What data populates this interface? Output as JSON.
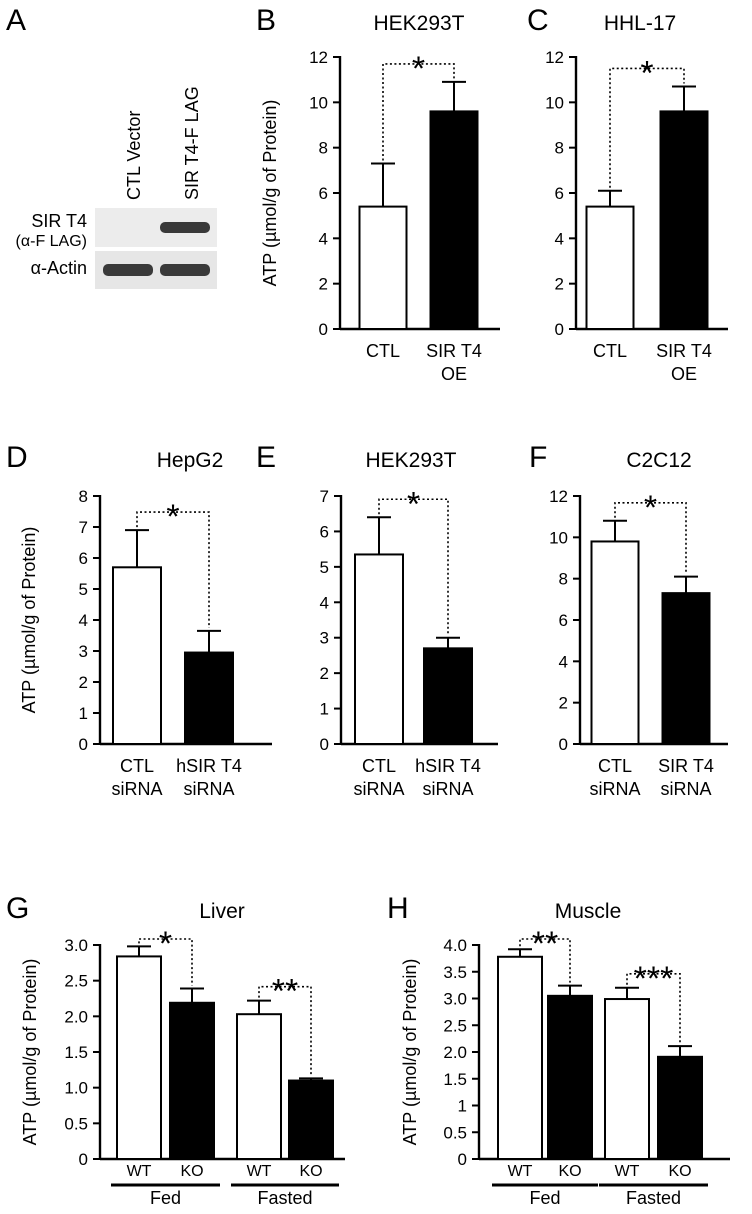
{
  "panels": {
    "A": {
      "letter": "A",
      "blot": {
        "lanes": [
          "CTL Vector",
          "SIR T4-F LAG"
        ],
        "rows": [
          {
            "label_line1": "SIR T4",
            "label_line2": "(α-F LAG)",
            "bands": [
              0.0,
              1.0
            ]
          },
          {
            "label_line1": "α-Actin",
            "label_line2": "",
            "bands": [
              1.0,
              1.0
            ]
          }
        ]
      }
    }
  },
  "chart_data": [
    {
      "id": "B",
      "letter": "B",
      "type": "bar",
      "title": "HEK293T",
      "ylabel": "ATP (µmol/g of Protein)",
      "ylim": [
        0,
        12
      ],
      "yticks": [
        "0",
        "2",
        "4",
        "6",
        "8",
        "10",
        "12"
      ],
      "categories": [
        {
          "line1": "CTL",
          "line2": ""
        },
        {
          "line1": "SIR T4",
          "line2": "OE"
        }
      ],
      "values": [
        5.4,
        9.6
      ],
      "errors": [
        1.9,
        1.3
      ],
      "fills": [
        "#ffffff",
        "#000000"
      ],
      "significance": [
        {
          "from": 0,
          "to": 1,
          "label": "*"
        }
      ]
    },
    {
      "id": "C",
      "letter": "C",
      "type": "bar",
      "title": "HHL-17",
      "ylabel": "",
      "ylim": [
        0,
        12
      ],
      "yticks": [
        "0",
        "2",
        "4",
        "6",
        "8",
        "10",
        "12"
      ],
      "categories": [
        {
          "line1": "CTL",
          "line2": ""
        },
        {
          "line1": "SIR T4",
          "line2": "OE"
        }
      ],
      "values": [
        5.4,
        9.6
      ],
      "errors": [
        0.7,
        1.1
      ],
      "fills": [
        "#ffffff",
        "#000000"
      ],
      "significance": [
        {
          "from": 0,
          "to": 1,
          "label": "*"
        }
      ]
    },
    {
      "id": "D",
      "letter": "D",
      "type": "bar",
      "title": "HepG2",
      "ylabel": "ATP (µmol/g of Protein)",
      "ylim": [
        0,
        8
      ],
      "yticks": [
        "0",
        "1",
        "2",
        "3",
        "4",
        "5",
        "6",
        "7",
        "8"
      ],
      "categories": [
        {
          "line1": "CTL",
          "line2": "siRNA"
        },
        {
          "line1": "hSIR T4",
          "line2": "siRNA"
        }
      ],
      "values": [
        5.7,
        2.95
      ],
      "errors": [
        1.2,
        0.7
      ],
      "fills": [
        "#ffffff",
        "#000000"
      ],
      "significance": [
        {
          "from": 0,
          "to": 1,
          "label": "*"
        }
      ]
    },
    {
      "id": "E",
      "letter": "E",
      "type": "bar",
      "title": "HEK293T",
      "ylabel": "",
      "ylim": [
        0,
        7
      ],
      "yticks": [
        "0",
        "1",
        "2",
        "3",
        "4",
        "5",
        "6",
        "7"
      ],
      "categories": [
        {
          "line1": "CTL",
          "line2": "siRNA"
        },
        {
          "line1": "hSIR T4",
          "line2": "siRNA"
        }
      ],
      "values": [
        5.35,
        2.7
      ],
      "errors": [
        1.05,
        0.3
      ],
      "fills": [
        "#ffffff",
        "#000000"
      ],
      "significance": [
        {
          "from": 0,
          "to": 1,
          "label": "*"
        }
      ]
    },
    {
      "id": "F",
      "letter": "F",
      "type": "bar",
      "title": "C2C12",
      "ylabel": "",
      "ylim": [
        0,
        12
      ],
      "yticks": [
        "0",
        "2",
        "4",
        "6",
        "8",
        "10",
        "12"
      ],
      "categories": [
        {
          "line1": "CTL",
          "line2": "siRNA"
        },
        {
          "line1": "SIR T4",
          "line2": "siRNA"
        }
      ],
      "values": [
        9.8,
        7.3
      ],
      "errors": [
        1.0,
        0.8
      ],
      "fills": [
        "#ffffff",
        "#000000"
      ],
      "significance": [
        {
          "from": 0,
          "to": 1,
          "label": "*"
        }
      ]
    },
    {
      "id": "G",
      "letter": "G",
      "type": "bar",
      "title": "Liver",
      "ylabel": "ATP (µmol/g of Protein)",
      "ylim": [
        0,
        3.0
      ],
      "yticks": [
        "0",
        "0.5",
        "1.0",
        "1.5",
        "2.0",
        "2.5",
        "3.0"
      ],
      "categories": [
        {
          "line1": "WT",
          "line2": ""
        },
        {
          "line1": "KO",
          "line2": ""
        },
        {
          "line1": "WT",
          "line2": ""
        },
        {
          "line1": "KO",
          "line2": ""
        }
      ],
      "groups": [
        {
          "label": "Fed",
          "members": [
            0,
            1
          ]
        },
        {
          "label": "Fasted",
          "members": [
            2,
            3
          ]
        }
      ],
      "values": [
        2.84,
        2.19,
        2.03,
        1.1
      ],
      "errors": [
        0.14,
        0.2,
        0.19,
        0.03
      ],
      "fills": [
        "#ffffff",
        "#000000",
        "#ffffff",
        "#000000"
      ],
      "significance": [
        {
          "from": 0,
          "to": 1,
          "label": "*"
        },
        {
          "from": 2,
          "to": 3,
          "label": "**"
        }
      ]
    },
    {
      "id": "H",
      "letter": "H",
      "type": "bar",
      "title": "Muscle",
      "ylabel": "ATP (µmol/g of Protein)",
      "ylim": [
        0,
        4.0
      ],
      "yticks": [
        "0",
        "0.5",
        "1",
        "1.5",
        "2.0",
        "2.5",
        "3.0",
        "3.5",
        "4.0"
      ],
      "categories": [
        {
          "line1": "WT",
          "line2": ""
        },
        {
          "line1": "KO",
          "line2": ""
        },
        {
          "line1": "WT",
          "line2": ""
        },
        {
          "line1": "KO",
          "line2": ""
        }
      ],
      "groups": [
        {
          "label": "Fed",
          "members": [
            0,
            1
          ]
        },
        {
          "label": "Fasted",
          "members": [
            2,
            3
          ]
        }
      ],
      "values": [
        3.78,
        3.05,
        2.99,
        1.91
      ],
      "errors": [
        0.14,
        0.19,
        0.21,
        0.2
      ],
      "fills": [
        "#ffffff",
        "#000000",
        "#ffffff",
        "#000000"
      ],
      "significance": [
        {
          "from": 0,
          "to": 1,
          "label": "**"
        },
        {
          "from": 2,
          "to": 3,
          "label": "***"
        }
      ]
    }
  ]
}
